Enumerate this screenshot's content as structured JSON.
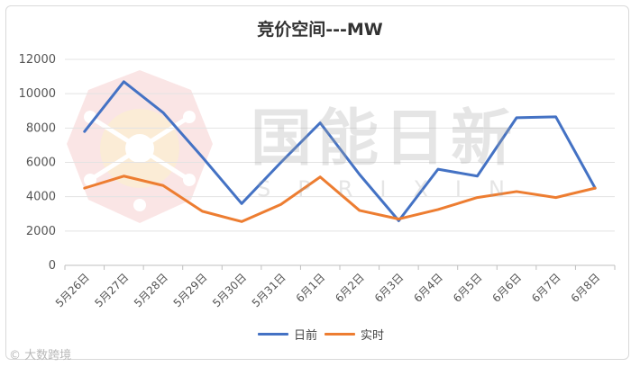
{
  "chart_data": {
    "type": "line",
    "title": "竞价空间---MW",
    "categories": [
      "5月26日",
      "5月27日",
      "5月28日",
      "5月29日",
      "5月30日",
      "5月31日",
      "6月1日",
      "6月2日",
      "6月3日",
      "6月4日",
      "6月5日",
      "6月6日",
      "6月7日",
      "6月8日"
    ],
    "ylim": [
      0,
      12000
    ],
    "yticks": [
      0,
      2000,
      4000,
      6000,
      8000,
      10000,
      12000
    ],
    "grid": true,
    "legend_position": "bottom",
    "series": [
      {
        "name": "日前",
        "color": "#4472c4",
        "values": [
          7800,
          10700,
          8900,
          6300,
          3600,
          6000,
          8300,
          5300,
          2600,
          5600,
          5200,
          8600,
          8650,
          4500
        ]
      },
      {
        "name": "实时",
        "color": "#ed7d31",
        "values": [
          4500,
          5200,
          4650,
          3150,
          2550,
          3550,
          5150,
          3200,
          2700,
          3250,
          3950,
          4300,
          3950,
          4500
        ]
      }
    ]
  },
  "watermark": {
    "main": "国能日新",
    "sub": "SPRIXIN"
  },
  "footer_mark": "大数跨境"
}
